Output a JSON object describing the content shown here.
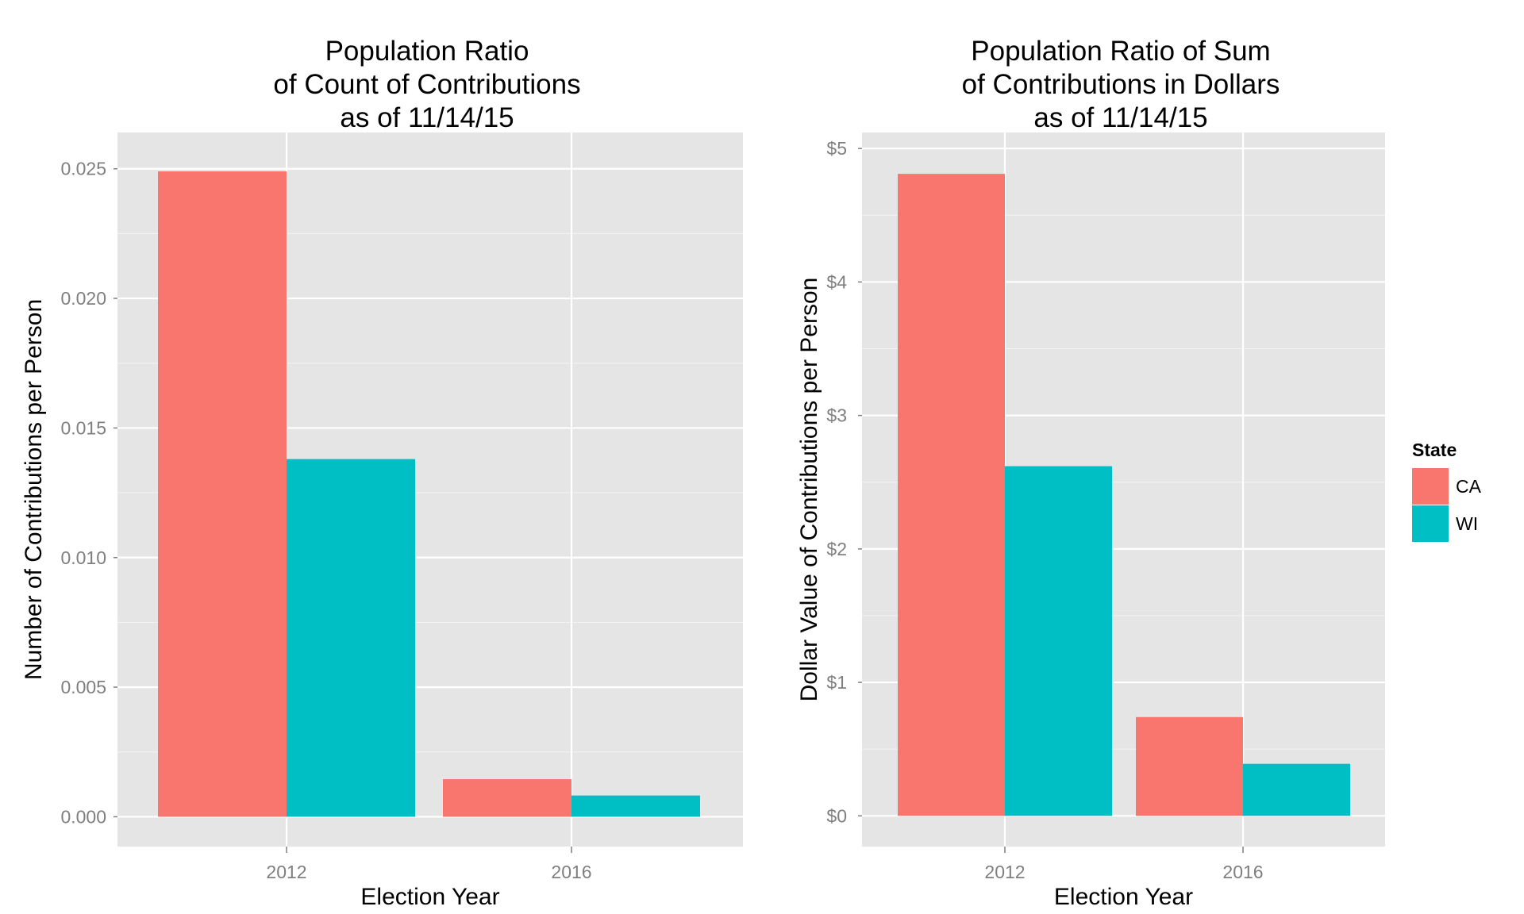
{
  "colors": {
    "CA": "#f8766d",
    "WI": "#00bfc4",
    "panel": "#e5e5e5",
    "grid": "#ffffff",
    "tick_text": "#7f7f7f"
  },
  "legend": {
    "title": "State",
    "items": [
      {
        "label": "CA",
        "color": "#f8766d"
      },
      {
        "label": "WI",
        "color": "#00bfc4"
      }
    ]
  },
  "chart_data": [
    {
      "type": "bar",
      "title_lines": [
        "Population Ratio",
        "of Count of Contributions",
        "as of 11/14/15"
      ],
      "xlabel": "Election Year",
      "ylabel": "Number of Contributions per Person",
      "categories": [
        "2012",
        "2016"
      ],
      "series": [
        {
          "name": "CA",
          "values": [
            0.0249,
            0.00145
          ]
        },
        {
          "name": "WI",
          "values": [
            0.0138,
            0.00082
          ]
        }
      ],
      "ylim": [
        -0.00115,
        0.0264
      ],
      "yticks": [
        0,
        0.005,
        0.01,
        0.015,
        0.02,
        0.025
      ],
      "ytick_labels": [
        "0.000",
        "0.005",
        "0.010",
        "0.015",
        "0.020",
        "0.025"
      ],
      "grid": true
    },
    {
      "type": "bar",
      "title_lines": [
        "Population Ratio of Sum",
        "of Contributions in Dollars",
        "as of 11/14/15"
      ],
      "xlabel": "Election Year",
      "ylabel": "Dollar Value of Contributions per Person",
      "categories": [
        "2012",
        "2016"
      ],
      "series": [
        {
          "name": "CA",
          "values": [
            4.81,
            0.74
          ]
        },
        {
          "name": "WI",
          "values": [
            2.62,
            0.39
          ]
        }
      ],
      "ylim": [
        -0.23,
        5.12
      ],
      "yticks": [
        0,
        1,
        2,
        3,
        4,
        5
      ],
      "ytick_labels": [
        "$0",
        "$1",
        "$2",
        "$3",
        "$4",
        "$5"
      ],
      "grid": true
    }
  ]
}
